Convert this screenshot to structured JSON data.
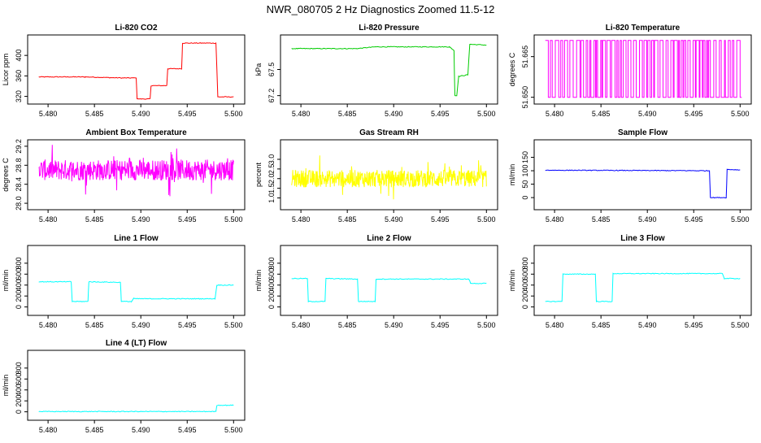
{
  "main_title": "NWR_080705  2 Hz Diagnostics Zoomed 11.5-12",
  "chart_data": [
    {
      "type": "line",
      "title": "Li-820 CO2",
      "ylabel": "Licor ppm",
      "color": "#ff0000",
      "xlim": [
        5.4785,
        5.5005
      ],
      "ylim": [
        313,
        432
      ],
      "xticks": [
        "5.480",
        "5.485",
        "5.490",
        "5.495",
        "5.500"
      ],
      "yticks": [
        "320",
        "360",
        "400"
      ],
      "x": [
        5.479,
        5.484,
        5.488,
        5.4895,
        5.4896,
        5.491,
        5.4911,
        5.4928,
        5.4929,
        5.4944,
        5.4945,
        5.4981,
        5.4983,
        5.5
      ],
      "y": [
        358,
        358,
        356,
        356,
        315,
        315,
        341,
        341,
        374,
        374,
        424,
        424,
        319,
        319
      ]
    },
    {
      "type": "line",
      "title": "Li-820 Pressure",
      "ylabel": "kPa",
      "color": "#00cc00",
      "xlim": [
        5.4785,
        5.5005
      ],
      "ylim": [
        67.15,
        67.85
      ],
      "xticks": [
        "5.480",
        "5.485",
        "5.490",
        "5.495",
        "5.500"
      ],
      "yticks": [
        "67.2",
        "67.5"
      ],
      "x": [
        5.479,
        5.486,
        5.488,
        5.496,
        5.4965,
        5.4966,
        5.4968,
        5.497,
        5.498,
        5.4982,
        5.5
      ],
      "y": [
        67.74,
        67.74,
        67.76,
        67.76,
        67.72,
        67.2,
        67.2,
        67.42,
        67.44,
        67.79,
        67.78
      ]
    },
    {
      "type": "line",
      "title": "Li-820 Temperature",
      "ylabel": "degrees C",
      "color": "#ff00ff",
      "xlim": [
        5.4785,
        5.5005
      ],
      "ylim": [
        51.649,
        51.6715
      ],
      "xticks": [
        "5.480",
        "5.485",
        "5.490",
        "5.495",
        "5.500"
      ],
      "yticks": [
        "51.650",
        "51.665"
      ],
      "low": 51.65,
      "high": 51.671
    },
    {
      "type": "line",
      "title": "Ambient Box Temperature",
      "ylabel": "degrees C",
      "color": "#ff00ff",
      "xlim": [
        5.4785,
        5.5005
      ],
      "ylim": [
        27.95,
        29.25
      ],
      "xticks": [
        "5.480",
        "5.485",
        "5.490",
        "5.495",
        "5.500"
      ],
      "yticks": [
        "28.0",
        "28.4",
        "28.8",
        "29.2"
      ],
      "mean": 28.7,
      "spread": 0.22
    },
    {
      "type": "line",
      "title": "Gas Stream RH",
      "ylabel": "percent",
      "color": "#ffff00",
      "xlim": [
        5.4785,
        5.5005
      ],
      "ylim": [
        0.6,
        3.8
      ],
      "xticks": [
        "5.480",
        "5.485",
        "5.490",
        "5.495",
        "5.500"
      ],
      "yticks": [
        "1.0",
        "1.5",
        "2.0",
        "2.5",
        "3.0"
      ],
      "mean": 2.0,
      "spread": 0.45
    },
    {
      "type": "line",
      "title": "Sample Flow",
      "ylabel": "ml/min",
      "color": "#0000ff",
      "xlim": [
        5.4785,
        5.5005
      ],
      "ylim": [
        -30,
        200
      ],
      "xticks": [
        "5.480",
        "5.485",
        "5.490",
        "5.495",
        "5.500"
      ],
      "yticks": [
        "0",
        "50",
        "100",
        "150"
      ],
      "x": [
        5.479,
        5.4967,
        5.4968,
        5.4985,
        5.4986,
        5.5
      ],
      "y": [
        102,
        100,
        0,
        0,
        105,
        103
      ]
    },
    {
      "type": "line",
      "title": "Line 1 Flow",
      "ylabel": "ml/min",
      "color": "#00ffff",
      "xlim": [
        5.4785,
        5.5005
      ],
      "ylim": [
        -80,
        1050
      ],
      "xticks": [
        "5.480",
        "5.485",
        "5.490",
        "5.495",
        "5.500"
      ],
      "yticks": [
        "0",
        "200",
        "400",
        "600",
        "800"
      ],
      "x": [
        5.479,
        5.4825,
        5.4826,
        5.4843,
        5.4844,
        5.4878,
        5.4879,
        5.489,
        5.4892,
        5.498,
        5.4982,
        5.5
      ],
      "y": [
        460,
        460,
        100,
        100,
        460,
        450,
        100,
        100,
        150,
        150,
        400,
        400
      ]
    },
    {
      "type": "line",
      "title": "Line 2 Flow",
      "ylabel": "ml/min",
      "color": "#00ffff",
      "xlim": [
        5.4785,
        5.5005
      ],
      "ylim": [
        -80,
        1050
      ],
      "xticks": [
        "5.480",
        "5.485",
        "5.490",
        "5.495",
        "5.500"
      ],
      "yticks": [
        "0",
        "200",
        "400",
        "600",
        "800"
      ],
      "x": [
        5.479,
        5.4807,
        5.4808,
        5.4826,
        5.4827,
        5.4861,
        5.4862,
        5.488,
        5.4881,
        5.4981,
        5.4983,
        5.5
      ],
      "y": [
        520,
        520,
        100,
        100,
        520,
        510,
        100,
        100,
        510,
        510,
        430,
        430
      ]
    },
    {
      "type": "line",
      "title": "Line 3 Flow",
      "ylabel": "ml/min",
      "color": "#00ffff",
      "xlim": [
        5.4785,
        5.5005
      ],
      "ylim": [
        -80,
        1050
      ],
      "xticks": [
        "5.480",
        "5.485",
        "5.490",
        "5.495",
        "5.500"
      ],
      "yticks": [
        "0",
        "200",
        "400",
        "600",
        "800"
      ],
      "x": [
        5.479,
        5.4808,
        5.4809,
        5.4844,
        5.4845,
        5.4862,
        5.4863,
        5.4981,
        5.4983,
        5.5
      ],
      "y": [
        100,
        100,
        600,
        600,
        100,
        100,
        610,
        610,
        520,
        520
      ]
    },
    {
      "type": "line",
      "title": "Line 4 (LT) Flow",
      "ylabel": "ml/min",
      "color": "#00ffff",
      "xlim": [
        5.4785,
        5.5005
      ],
      "ylim": [
        -80,
        1050
      ],
      "xticks": [
        "5.480",
        "5.485",
        "5.490",
        "5.495",
        "5.500"
      ],
      "yticks": [
        "0",
        "200",
        "400",
        "600",
        "800"
      ],
      "x": [
        5.479,
        5.4981,
        5.4982,
        5.5
      ],
      "y": [
        5,
        5,
        120,
        120
      ]
    }
  ]
}
